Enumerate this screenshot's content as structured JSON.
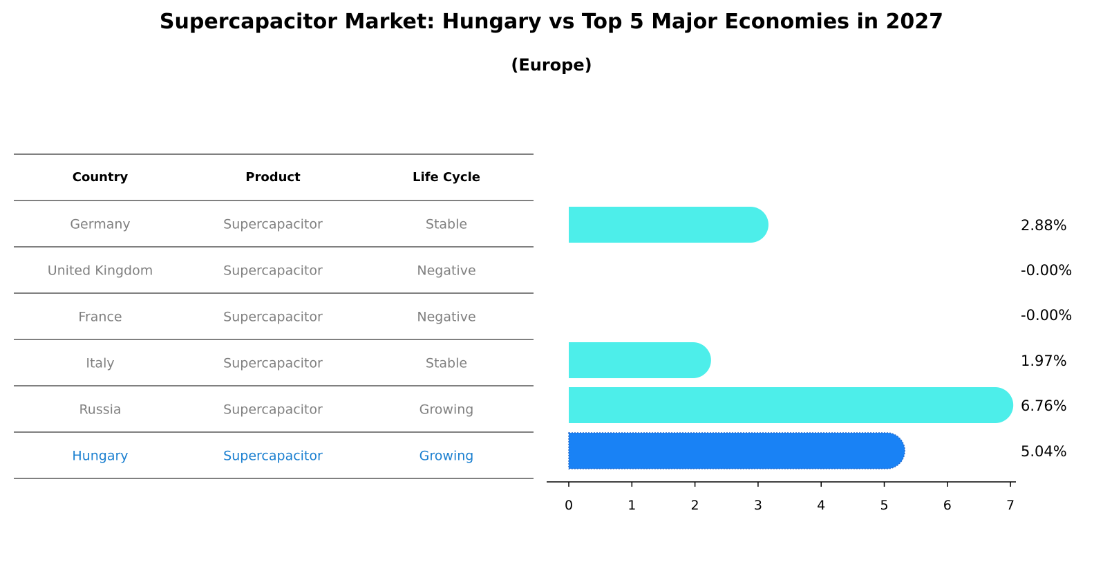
{
  "title": "Supercapacitor Market: Hungary vs Top 5 Major Economies in 2027",
  "subtitle": "(Europe)",
  "colors": {
    "bar": "#4DEEEA",
    "highlight_bar": "#1982F5",
    "highlight_text": "#1A7FD0",
    "muted_text": "#808080"
  },
  "table": {
    "headers": [
      "Country",
      "Product",
      "Life Cycle"
    ],
    "rows": [
      {
        "country": "Germany",
        "product": "Supercapacitor",
        "life_cycle": "Stable",
        "highlight": false
      },
      {
        "country": "United Kingdom",
        "product": "Supercapacitor",
        "life_cycle": "Negative",
        "highlight": false
      },
      {
        "country": "France",
        "product": "Supercapacitor",
        "life_cycle": "Negative",
        "highlight": false
      },
      {
        "country": "Italy",
        "product": "Supercapacitor",
        "life_cycle": "Stable",
        "highlight": false
      },
      {
        "country": "Russia",
        "product": "Supercapacitor",
        "life_cycle": "Growing",
        "highlight": false
      },
      {
        "country": "Hungary",
        "product": "Supercapacitor",
        "life_cycle": "Growing",
        "highlight": true
      }
    ]
  },
  "chart_data": {
    "type": "bar",
    "orientation": "horizontal",
    "categories": [
      "Germany",
      "United Kingdom",
      "France",
      "Italy",
      "Russia",
      "Hungary"
    ],
    "values": [
      2.88,
      -0.0,
      -0.0,
      1.97,
      6.76,
      5.04
    ],
    "value_labels": [
      "2.88%",
      "-0.00%",
      "-0.00%",
      "1.97%",
      "6.76%",
      "5.04%"
    ],
    "highlight_category": "Hungary",
    "xlim": [
      0,
      7
    ],
    "xticks": [
      "0",
      "1",
      "2",
      "3",
      "4",
      "5",
      "6",
      "7"
    ],
    "xlabel": "",
    "ylabel": "",
    "grid": false,
    "legend": false
  }
}
